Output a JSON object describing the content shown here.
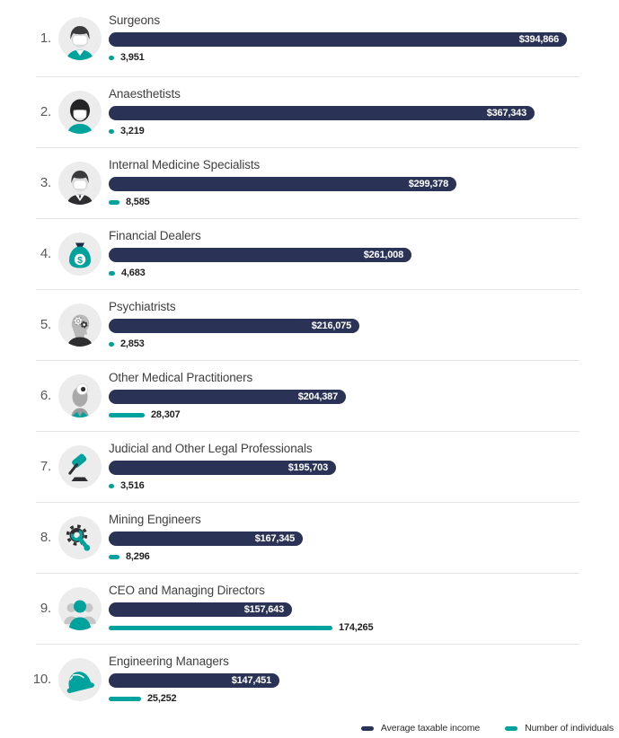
{
  "colors": {
    "income_bar": "#2a3356",
    "count_bar": "#00a29e",
    "icon_circle_bg": "#ececec",
    "separator": "#e4e4e4"
  },
  "legend": {
    "items": [
      {
        "label": "Average taxable income",
        "color": "#2a3356"
      },
      {
        "label": "Number of individuals",
        "color": "#00a29e"
      }
    ]
  },
  "chart_data": {
    "type": "bar",
    "orientation": "horizontal",
    "title": "",
    "grid": false,
    "legend_position": "bottom-right",
    "value_axis_max_income": 400000,
    "value_axis_max_count": 180000,
    "ranks": [
      "1.",
      "2.",
      "3.",
      "4.",
      "5.",
      "6.",
      "7.",
      "8.",
      "9.",
      "10."
    ],
    "categories": [
      "Surgeons",
      "Anaesthetists",
      "Internal Medicine Specialists",
      "Financial Dealers",
      "Psychiatrists",
      "Other Medical Practitioners",
      "Judicial and Other Legal Professionals",
      "Mining Engineers",
      "CEO and Managing Directors",
      "Engineering Managers"
    ],
    "icons": [
      "surgeon-icon",
      "anaesthetist-icon",
      "internal-medicine-specialist-icon",
      "money-bag-icon",
      "psychiatrist-icon",
      "head-mirror-doctor-icon",
      "gavel-icon",
      "gear-wrench-icon",
      "ceo-people-icon",
      "hard-hat-icon"
    ],
    "series": [
      {
        "name": "Average taxable income",
        "color": "#2a3356",
        "values": [
          394866,
          367343,
          299378,
          261008,
          216075,
          204387,
          195703,
          167345,
          157643,
          147451
        ],
        "labels": [
          "$394,866",
          "$367,343",
          "$299,378",
          "$261,008",
          "$216,075",
          "$204,387",
          "$195,703",
          "$167,345",
          "$157,643",
          "$147,451"
        ]
      },
      {
        "name": "Number of individuals",
        "color": "#00a29e",
        "values": [
          3951,
          3219,
          8585,
          4683,
          2853,
          28307,
          3516,
          8296,
          174265,
          25252
        ],
        "labels": [
          "3,951",
          "3,219",
          "8,585",
          "4,683",
          "2,853",
          "28,307",
          "3,516",
          "8,296",
          "174,265",
          "25,252"
        ]
      }
    ]
  }
}
